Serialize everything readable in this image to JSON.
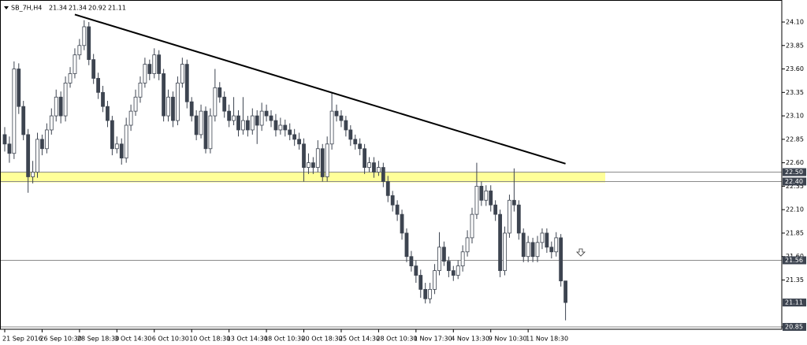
{
  "chart_data": {
    "type": "candlestick",
    "symbol": "SB_7H,H4",
    "categories": [
      "21 Sep 2016",
      null,
      null,
      null,
      null,
      null,
      null,
      null,
      "26 Sep 10:30",
      null,
      null,
      null,
      null,
      null,
      null,
      null,
      "28 Sep 18:30",
      null,
      null,
      null,
      null,
      null,
      null,
      null,
      "3 Oct 14:30",
      null,
      null,
      null,
      null,
      null,
      null,
      null,
      "6 Oct 10:30",
      null,
      null,
      null,
      null,
      null,
      null,
      null,
      "10 Oct 18:30",
      null,
      null,
      null,
      null,
      null,
      null,
      null,
      "13 Oct 14:30",
      null,
      null,
      null,
      null,
      null,
      null,
      null,
      "18 Oct 10:30",
      null,
      null,
      null,
      null,
      null,
      null,
      null,
      "20 Oct 18:30",
      null,
      null,
      null,
      null,
      null,
      null,
      null,
      "25 Oct 14:30",
      null,
      null,
      null,
      null,
      null,
      null,
      null,
      "28 Oct 10:30",
      null,
      null,
      null,
      null,
      null,
      null,
      null,
      "1 Nov 17:30",
      null,
      null,
      null,
      null,
      null,
      null,
      null,
      "4 Nov 13:30",
      null,
      null,
      null,
      null,
      null,
      null,
      null,
      "9 Nov 10:30",
      null,
      null,
      null,
      null,
      null,
      null,
      null,
      "11 Nov 18:30",
      null,
      null,
      null,
      null,
      null,
      null,
      null,
      null
    ],
    "ohlc": [
      [
        22.9,
        22.98,
        22.72,
        22.8
      ],
      [
        22.8,
        22.88,
        22.6,
        22.7
      ],
      [
        22.7,
        23.68,
        22.64,
        23.6
      ],
      [
        23.6,
        23.66,
        23.12,
        23.2
      ],
      [
        23.2,
        23.26,
        22.84,
        22.9
      ],
      [
        22.9,
        22.96,
        22.28,
        22.45
      ],
      [
        22.45,
        22.62,
        22.38,
        22.5
      ],
      [
        22.5,
        22.92,
        22.44,
        22.85
      ],
      [
        22.85,
        22.9,
        22.68,
        22.75
      ],
      [
        22.75,
        23.02,
        22.7,
        22.95
      ],
      [
        22.95,
        23.18,
        22.9,
        23.1
      ],
      [
        23.1,
        23.38,
        23.04,
        23.3
      ],
      [
        23.3,
        23.36,
        23.02,
        23.1
      ],
      [
        23.1,
        23.52,
        23.04,
        23.45
      ],
      [
        23.45,
        23.62,
        23.4,
        23.55
      ],
      [
        23.55,
        23.82,
        23.5,
        23.75
      ],
      [
        23.75,
        23.92,
        23.7,
        23.85
      ],
      [
        23.85,
        24.12,
        23.8,
        24.05
      ],
      [
        24.05,
        24.1,
        23.64,
        23.7
      ],
      [
        23.7,
        23.76,
        23.44,
        23.5
      ],
      [
        23.5,
        23.56,
        23.28,
        23.35
      ],
      [
        23.35,
        23.42,
        23.14,
        23.2
      ],
      [
        23.2,
        23.26,
        22.98,
        23.05
      ],
      [
        23.05,
        23.1,
        22.68,
        22.75
      ],
      [
        22.75,
        22.88,
        22.7,
        22.8
      ],
      [
        22.8,
        22.86,
        22.58,
        22.65
      ],
      [
        22.65,
        23.08,
        22.6,
        23.0
      ],
      [
        23.0,
        23.22,
        22.94,
        23.15
      ],
      [
        23.15,
        23.38,
        23.1,
        23.3
      ],
      [
        23.3,
        23.52,
        23.24,
        23.45
      ],
      [
        23.45,
        23.72,
        23.4,
        23.65
      ],
      [
        23.65,
        23.7,
        23.48,
        23.55
      ],
      [
        23.55,
        23.82,
        23.5,
        23.75
      ],
      [
        23.75,
        23.8,
        23.48,
        23.55
      ],
      [
        23.55,
        23.6,
        23.04,
        23.1
      ],
      [
        23.1,
        23.38,
        23.04,
        23.3
      ],
      [
        23.3,
        23.36,
        22.98,
        23.05
      ],
      [
        23.05,
        23.52,
        23.0,
        23.45
      ],
      [
        23.45,
        23.72,
        23.4,
        23.65
      ],
      [
        23.65,
        23.7,
        23.18,
        23.25
      ],
      [
        23.25,
        23.3,
        23.04,
        23.1
      ],
      [
        23.1,
        23.16,
        22.84,
        22.9
      ],
      [
        22.9,
        23.22,
        22.86,
        23.15
      ],
      [
        23.15,
        23.2,
        22.7,
        22.75
      ],
      [
        22.75,
        23.18,
        22.7,
        23.1
      ],
      [
        23.1,
        23.6,
        23.04,
        23.4
      ],
      [
        23.4,
        23.46,
        23.24,
        23.3
      ],
      [
        23.3,
        23.36,
        23.08,
        23.15
      ],
      [
        23.15,
        23.22,
        22.98,
        23.05
      ],
      [
        23.05,
        23.3,
        23.0,
        23.1
      ],
      [
        23.1,
        23.16,
        22.88,
        22.95
      ],
      [
        22.95,
        23.3,
        22.9,
        23.05
      ],
      [
        23.05,
        23.1,
        22.88,
        22.95
      ],
      [
        22.95,
        23.18,
        22.9,
        23.1
      ],
      [
        23.1,
        23.16,
        22.8,
        23.0
      ],
      [
        23.0,
        23.24,
        22.94,
        23.15
      ],
      [
        23.15,
        23.22,
        23.04,
        23.1
      ],
      [
        23.1,
        23.16,
        22.98,
        23.05
      ],
      [
        23.05,
        23.12,
        22.88,
        22.95
      ],
      [
        22.95,
        23.08,
        22.9,
        23.0
      ],
      [
        23.0,
        23.06,
        22.88,
        22.95
      ],
      [
        22.95,
        23.02,
        22.84,
        22.9
      ],
      [
        22.9,
        22.96,
        22.78,
        22.85
      ],
      [
        22.85,
        22.92,
        22.74,
        22.8
      ],
      [
        22.8,
        22.86,
        22.4,
        22.55
      ],
      [
        22.55,
        22.7,
        22.48,
        22.6
      ],
      [
        22.6,
        22.66,
        22.48,
        22.55
      ],
      [
        22.55,
        22.84,
        22.5,
        22.75
      ],
      [
        22.75,
        22.8,
        22.4,
        22.45
      ],
      [
        22.45,
        22.88,
        22.4,
        22.8
      ],
      [
        22.8,
        23.34,
        22.74,
        23.15
      ],
      [
        23.15,
        23.22,
        23.04,
        23.1
      ],
      [
        23.1,
        23.16,
        22.98,
        23.05
      ],
      [
        23.05,
        23.1,
        22.88,
        22.95
      ],
      [
        22.95,
        23.0,
        22.78,
        22.85
      ],
      [
        22.85,
        22.9,
        22.74,
        22.8
      ],
      [
        22.8,
        22.86,
        22.68,
        22.75
      ],
      [
        22.75,
        22.8,
        22.48,
        22.55
      ],
      [
        22.55,
        22.66,
        22.5,
        22.6
      ],
      [
        22.6,
        22.66,
        22.44,
        22.5
      ],
      [
        22.5,
        22.62,
        22.46,
        22.55
      ],
      [
        22.55,
        22.6,
        22.34,
        22.4
      ],
      [
        22.4,
        22.46,
        22.18,
        22.25
      ],
      [
        22.25,
        22.3,
        22.08,
        22.15
      ],
      [
        22.15,
        22.2,
        21.98,
        22.05
      ],
      [
        22.05,
        22.1,
        21.78,
        21.85
      ],
      [
        21.85,
        21.9,
        21.54,
        21.6
      ],
      [
        21.6,
        21.66,
        21.44,
        21.5
      ],
      [
        21.5,
        21.56,
        21.32,
        21.4
      ],
      [
        21.4,
        21.46,
        21.16,
        21.25
      ],
      [
        21.25,
        21.32,
        21.1,
        21.15
      ],
      [
        21.15,
        21.32,
        21.1,
        21.25
      ],
      [
        21.25,
        21.52,
        21.2,
        21.45
      ],
      [
        21.45,
        21.86,
        21.4,
        21.7
      ],
      [
        21.7,
        21.76,
        21.5,
        21.55
      ],
      [
        21.55,
        21.6,
        21.38,
        21.45
      ],
      [
        21.45,
        21.5,
        21.34,
        21.4
      ],
      [
        21.4,
        21.56,
        21.36,
        21.5
      ],
      [
        21.5,
        21.72,
        21.44,
        21.65
      ],
      [
        21.65,
        21.88,
        21.6,
        21.8
      ],
      [
        21.8,
        22.12,
        21.74,
        22.05
      ],
      [
        22.05,
        22.6,
        22.0,
        22.35
      ],
      [
        22.35,
        22.4,
        22.14,
        22.2
      ],
      [
        22.2,
        22.36,
        22.14,
        22.3
      ],
      [
        22.3,
        22.36,
        22.08,
        22.15
      ],
      [
        22.15,
        22.2,
        21.98,
        22.05
      ],
      [
        22.05,
        22.1,
        21.38,
        21.45
      ],
      [
        21.45,
        21.92,
        21.4,
        21.85
      ],
      [
        21.85,
        22.26,
        21.8,
        22.2
      ],
      [
        22.2,
        22.54,
        22.08,
        22.15
      ],
      [
        22.15,
        22.2,
        21.78,
        21.85
      ],
      [
        21.85,
        21.9,
        21.54,
        21.6
      ],
      [
        21.6,
        21.82,
        21.54,
        21.75
      ],
      [
        21.75,
        21.8,
        21.54,
        21.6
      ],
      [
        21.6,
        21.82,
        21.54,
        21.75
      ],
      [
        21.75,
        21.9,
        21.68,
        21.85
      ],
      [
        21.85,
        21.9,
        21.64,
        21.7
      ],
      [
        21.7,
        21.76,
        21.58,
        21.65
      ],
      [
        21.65,
        21.86,
        21.6,
        21.8
      ],
      [
        21.8,
        21.84,
        21.28,
        21.34
      ],
      [
        21.34,
        21.34,
        20.92,
        21.11
      ]
    ],
    "up_color": "#ffffff",
    "down_color": "#3d4450",
    "ylim": [
      20.825,
      24.31
    ],
    "yticks": [
      {
        "value": 24.1,
        "label": "24.10"
      },
      23.85,
      {
        "value": 23.6,
        "label": "23.60"
      },
      23.35,
      {
        "value": 23.1,
        "label": "23.10"
      },
      22.85,
      {
        "value": 22.6,
        "label": "22.60"
      },
      22.35,
      {
        "value": 22.1,
        "label": "22.10"
      },
      21.85,
      {
        "value": 21.6,
        "label": "21.60"
      },
      21.35,
      20.85
    ],
    "levels": [
      {
        "value": 22.5,
        "label": "22.50"
      },
      {
        "value": 22.4,
        "label": "22.40"
      },
      {
        "value": 21.56,
        "label": "21.56"
      },
      20.85
    ],
    "zone": {
      "from": 22.39,
      "to": 22.5,
      "color": "#ffff99"
    },
    "trendline": {
      "x": [
        15,
        120
      ],
      "y": [
        24.18,
        22.59
      ],
      "color": "#000000"
    }
  }
}
